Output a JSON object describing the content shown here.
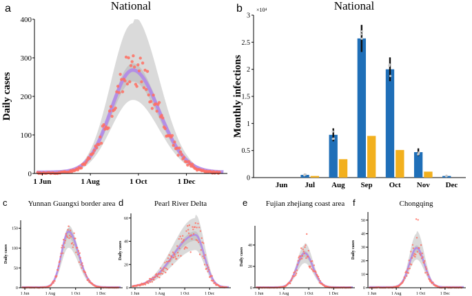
{
  "colors": {
    "band": "#d3d3d3",
    "model_line": "#b088e8",
    "observed": "#ff6f61",
    "bar_blue": "#1f6fb8",
    "bar_orange": "#f2b01e",
    "axis": "#000000"
  },
  "chart_data": [
    {
      "panel": "a",
      "type": "line",
      "title": "National",
      "xlabel": "",
      "ylabel": "Daily cases",
      "x_ticks": [
        {
          "day": 0,
          "label": "1 Jun"
        },
        {
          "day": 61,
          "label": "1 Aug"
        },
        {
          "day": 122,
          "label": "1 Oct"
        },
        {
          "day": 183,
          "label": "1 Dec"
        }
      ],
      "y_ticks": [
        0,
        100,
        200,
        300,
        400
      ],
      "xlim": [
        -10,
        235
      ],
      "ylim": [
        0,
        400
      ],
      "peak_day": 115,
      "peak_value": 265,
      "width_left": 28,
      "width_right": 33,
      "band_peak": 390,
      "scatter_spread": 0.18,
      "observed_max": 325
    },
    {
      "panel": "b",
      "type": "bar",
      "title": "National",
      "ylabel": "Monthly infections",
      "multiplier": "×10⁴",
      "categories": [
        "Jun",
        "Jul",
        "Aug",
        "Sep",
        "Oct",
        "Nov",
        "Dec"
      ],
      "series": [
        {
          "name": "blue",
          "values": [
            0.0,
            0.05,
            0.79,
            2.57,
            2.0,
            0.47,
            0.03
          ]
        },
        {
          "name": "orange",
          "values": [
            0.0,
            0.03,
            0.34,
            0.77,
            0.51,
            0.11,
            0.0
          ]
        }
      ],
      "errors": [
        0.0,
        0.02,
        0.12,
        0.25,
        0.22,
        0.07,
        0.01
      ],
      "y_ticks": [
        "0",
        "0.5",
        "1",
        "1.5",
        "2",
        "2.5",
        "3"
      ],
      "ylim": [
        0,
        3
      ]
    },
    {
      "panel": "c",
      "type": "line",
      "title": "Yunnan Guangxi border area",
      "ylabel": "Daily cases",
      "x_ticks": [
        {
          "day": 0,
          "label": "1 Jun"
        },
        {
          "day": 61,
          "label": "1 Aug"
        },
        {
          "day": 122,
          "label": "1 Oct"
        },
        {
          "day": 183,
          "label": "1 Dec"
        }
      ],
      "y_ticks": [
        0,
        50,
        100,
        150
      ],
      "xlim": [
        -10,
        235
      ],
      "ylim": [
        0,
        170
      ],
      "peak_day": 105,
      "peak_value": 140,
      "width_left": 17,
      "width_right": 24,
      "band_peak": 150,
      "scatter_spread": 0.2,
      "observed_max": 165
    },
    {
      "panel": "d",
      "type": "line",
      "title": "Pearl River Delta",
      "ylabel": "Daily cases",
      "x_ticks": [
        {
          "day": 0,
          "label": "1 Jun"
        },
        {
          "day": 61,
          "label": "1 Aug"
        },
        {
          "day": 122,
          "label": "1 Oct"
        },
        {
          "day": 183,
          "label": "1 Dec"
        }
      ],
      "y_ticks": [
        0,
        20,
        40,
        60
      ],
      "xlim": [
        -10,
        235
      ],
      "ylim": [
        0,
        64
      ],
      "peak_day": 148,
      "peak_value": 45,
      "width_left": 55,
      "width_right": 22,
      "band_peak": 60,
      "scatter_spread": 0.3,
      "observed_max": 58
    },
    {
      "panel": "e",
      "type": "line",
      "title": "Fujian zhejiang coast area",
      "ylabel": "Daily cases",
      "x_ticks": [
        {
          "day": 0,
          "label": "1 Jun"
        },
        {
          "day": 61,
          "label": "1 Aug"
        },
        {
          "day": 122,
          "label": "1 Oct"
        },
        {
          "day": 183,
          "label": "1 Dec"
        }
      ],
      "y_ticks": [
        0,
        20,
        40
      ],
      "xlim": [
        -10,
        235
      ],
      "ylim": [
        0,
        58
      ],
      "peak_day": 112,
      "peak_value": 32,
      "width_left": 19,
      "width_right": 20,
      "band_peak": 40,
      "scatter_spread": 0.3,
      "observed_max": 55
    },
    {
      "panel": "f",
      "type": "line",
      "title": "Chongqing",
      "ylabel": "Daily cases",
      "x_ticks": [
        {
          "day": 0,
          "label": "1 Jun"
        },
        {
          "day": 61,
          "label": "1 Aug"
        },
        {
          "day": 122,
          "label": "1 Oct"
        },
        {
          "day": 183,
          "label": "1 Dec"
        }
      ],
      "y_ticks": [
        0,
        10,
        20,
        30,
        40,
        50
      ],
      "xlim": [
        -10,
        235
      ],
      "ylim": [
        0,
        56
      ],
      "peak_day": 112,
      "peak_value": 29,
      "width_left": 18,
      "width_right": 19,
      "band_peak": 40,
      "scatter_spread": 0.3,
      "observed_max": 52
    }
  ]
}
